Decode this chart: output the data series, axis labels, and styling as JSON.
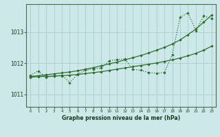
{
  "background_color": "#cce8e8",
  "grid_color": "#aacccc",
  "line_color": "#2d6e2d",
  "xlabel": "Graphe pression niveau de la mer (hPa)",
  "x_ticks": [
    0,
    1,
    2,
    3,
    4,
    5,
    6,
    7,
    8,
    9,
    10,
    11,
    12,
    13,
    14,
    15,
    16,
    17,
    18,
    19,
    20,
    21,
    22,
    23
  ],
  "ylim": [
    1010.6,
    1013.9
  ],
  "y_ticks": [
    1011,
    1012,
    1013
  ],
  "y_main": [
    1011.62,
    1011.75,
    1011.55,
    1011.58,
    1011.62,
    1011.38,
    1011.65,
    1011.78,
    1011.82,
    1011.85,
    1012.08,
    1012.12,
    1012.14,
    1011.8,
    1011.78,
    1011.7,
    1011.68,
    1011.7,
    1012.28,
    1013.48,
    1013.62,
    1013.05,
    1013.52,
    1013.44
  ],
  "y_upper": [
    1011.58,
    1011.6,
    1011.63,
    1011.66,
    1011.69,
    1011.72,
    1011.76,
    1011.81,
    1011.86,
    1011.92,
    1011.98,
    1012.04,
    1012.11,
    1012.18,
    1012.25,
    1012.33,
    1012.42,
    1012.51,
    1012.62,
    1012.75,
    1012.92,
    1013.1,
    1013.32,
    1013.55
  ],
  "y_lower": [
    1011.55,
    1011.57,
    1011.58,
    1011.59,
    1011.6,
    1011.62,
    1011.64,
    1011.67,
    1011.7,
    1011.73,
    1011.77,
    1011.81,
    1011.85,
    1011.89,
    1011.93,
    1011.97,
    1012.01,
    1012.06,
    1012.11,
    1012.17,
    1012.24,
    1012.32,
    1012.42,
    1012.55
  ]
}
